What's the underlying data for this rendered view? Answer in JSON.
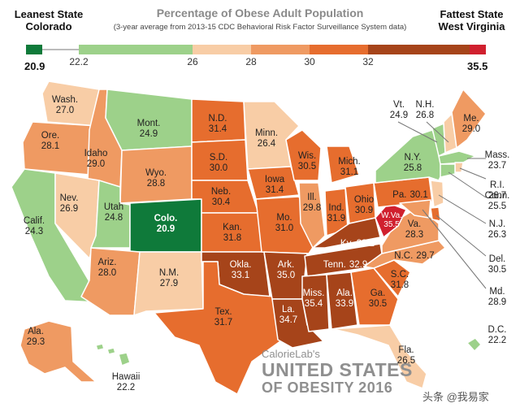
{
  "header": {
    "title": "Percentage of Obese Adult Population",
    "subtitle": "(3-year average from 2013-15 CDC Behavioral Risk Factor Surveillance System data)",
    "leanest_label": "Leanest State",
    "leanest_state": "Colorado",
    "leanest_value": "20.9",
    "fattest_label": "Fattest State",
    "fattest_state": "West Virginia",
    "fattest_value": "35.5"
  },
  "legend": {
    "ticks": [
      "22.2",
      "26",
      "28",
      "30",
      "32"
    ],
    "colors": {
      "leanest": "#0f7a3a",
      "c1": "#9dd18a",
      "c2": "#f8cda6",
      "c3": "#ef9a62",
      "c4": "#e66d2e",
      "c5": "#a6441a",
      "fattest": "#d0202e"
    }
  },
  "states": [
    {
      "abbr": "Wash.",
      "value": "27.0"
    },
    {
      "abbr": "Ore.",
      "value": "28.1"
    },
    {
      "abbr": "Calif.",
      "value": "24.3"
    },
    {
      "abbr": "Idaho",
      "value": "29.0"
    },
    {
      "abbr": "Nev.",
      "value": "26.9"
    },
    {
      "abbr": "Mont.",
      "value": "24.9"
    },
    {
      "abbr": "Wyo.",
      "value": "28.8"
    },
    {
      "abbr": "Utah",
      "value": "24.8"
    },
    {
      "abbr": "Colo.",
      "value": "20.9"
    },
    {
      "abbr": "Ariz.",
      "value": "28.0"
    },
    {
      "abbr": "N.M.",
      "value": "27.9"
    },
    {
      "abbr": "N.D.",
      "value": "31.4"
    },
    {
      "abbr": "S.D.",
      "value": "30.0"
    },
    {
      "abbr": "Neb.",
      "value": "30.4"
    },
    {
      "abbr": "Kan.",
      "value": "31.8"
    },
    {
      "abbr": "Okla.",
      "value": "33.1"
    },
    {
      "abbr": "Tex.",
      "value": "31.7"
    },
    {
      "abbr": "Minn.",
      "value": "26.4"
    },
    {
      "abbr": "Iowa",
      "value": "31.4"
    },
    {
      "abbr": "Mo.",
      "value": "31.0"
    },
    {
      "abbr": "Ark.",
      "value": "35.0"
    },
    {
      "abbr": "La.",
      "value": "34.7"
    },
    {
      "abbr": "Wis.",
      "value": "30.5"
    },
    {
      "abbr": "Ill.",
      "value": "29.8"
    },
    {
      "abbr": "Mich.",
      "value": "31.1"
    },
    {
      "abbr": "Ind.",
      "value": "31.9"
    },
    {
      "abbr": "Ohio",
      "value": "30.9"
    },
    {
      "abbr": "Ky.",
      "value": "33.1"
    },
    {
      "abbr": "Tenn.",
      "value": "32.9"
    },
    {
      "abbr": "Miss.",
      "value": "35.4"
    },
    {
      "abbr": "Ala.",
      "value": "33.9"
    },
    {
      "abbr": "Ga.",
      "value": "30.5"
    },
    {
      "abbr": "Fla.",
      "value": "26.5"
    },
    {
      "abbr": "S.C.",
      "value": "31.8"
    },
    {
      "abbr": "N.C.",
      "value": "29.7"
    },
    {
      "abbr": "Va.",
      "value": "28.3"
    },
    {
      "abbr": "W.Va.",
      "value": "35.5"
    },
    {
      "abbr": "Pa.",
      "value": "30.1"
    },
    {
      "abbr": "N.Y.",
      "value": "25.8"
    },
    {
      "abbr": "Vt.",
      "value": "24.9"
    },
    {
      "abbr": "N.H.",
      "value": "26.8"
    },
    {
      "abbr": "Me.",
      "value": "29.0"
    },
    {
      "abbr": "Mass.",
      "value": "23.7"
    },
    {
      "abbr": "R.I.",
      "value": "26.7"
    },
    {
      "abbr": "Conn.",
      "value": "25.5"
    },
    {
      "abbr": "N.J.",
      "value": "26.3"
    },
    {
      "abbr": "Del.",
      "value": "30.5"
    },
    {
      "abbr": "Md.",
      "value": "28.9"
    },
    {
      "abbr": "D.C.",
      "value": "22.2"
    },
    {
      "abbr": "Ala.",
      "value": "29.3"
    },
    {
      "abbr": "Hawaii",
      "value": "22.2"
    }
  ],
  "footer": {
    "brand": "CalorieLab's",
    "headline1": "UNITED STATES",
    "headline2": "OF OBESITY 2016",
    "watermark": "头条 @我易家"
  }
}
